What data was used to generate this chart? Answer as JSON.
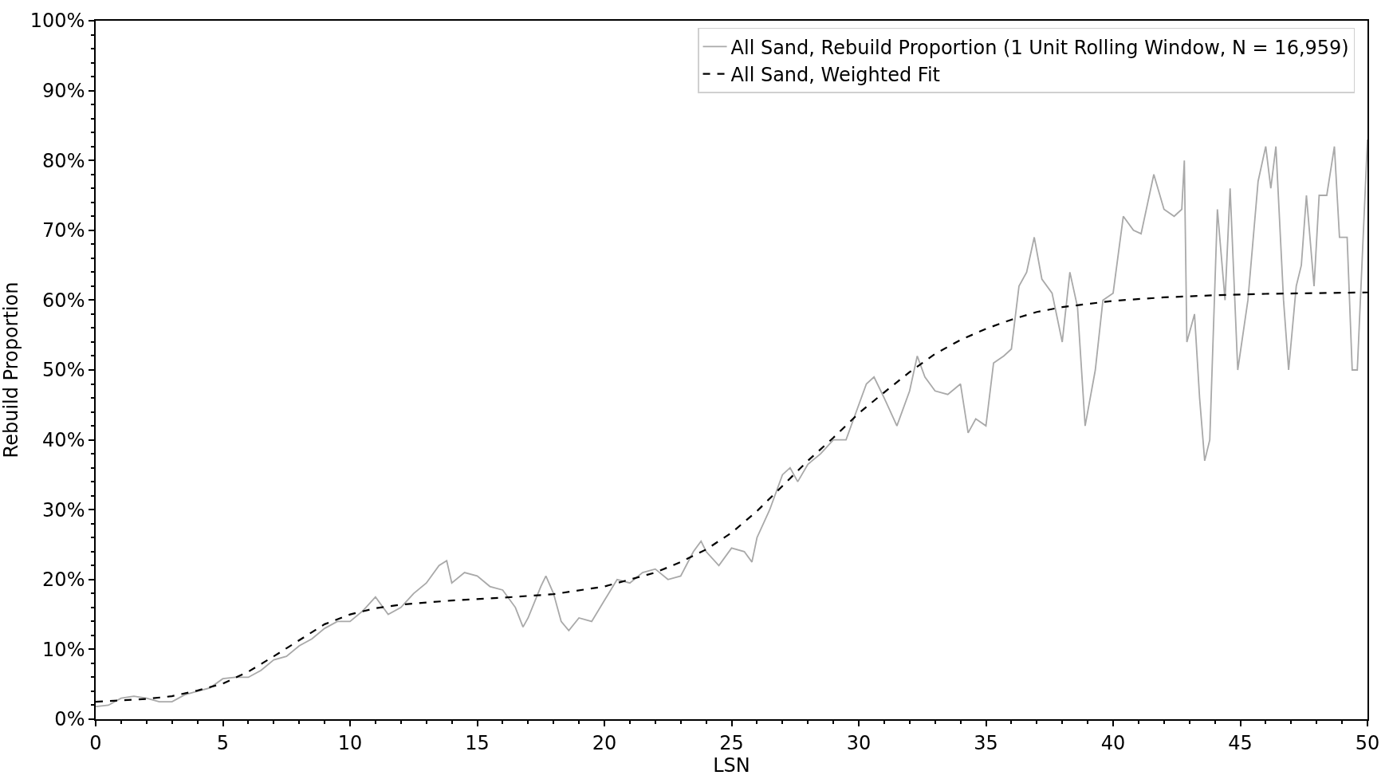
{
  "chart_data": {
    "type": "line",
    "xlabel": "LSN",
    "ylabel": "Rebuild Proportion",
    "xlim": [
      0,
      50
    ],
    "xticks": [
      0,
      5,
      10,
      15,
      20,
      25,
      30,
      35,
      40,
      45,
      50
    ],
    "ylim": [
      0,
      100
    ],
    "yticks": [
      {
        "value": 0,
        "label": "0%"
      },
      {
        "value": 10,
        "label": "10%"
      },
      {
        "value": 20,
        "label": "20%"
      },
      {
        "value": 30,
        "label": "30%"
      },
      {
        "value": 40,
        "label": "40%"
      },
      {
        "value": 50,
        "label": "50%"
      },
      {
        "value": 60,
        "label": "60%"
      },
      {
        "value": 70,
        "label": "70%"
      },
      {
        "value": 80,
        "label": "80%"
      },
      {
        "value": 90,
        "label": "90%"
      },
      {
        "value": 100,
        "label": "100%"
      }
    ],
    "legend": "top right",
    "series": [
      {
        "name": "All Sand, Rebuild Proportion (1 Unit Rolling Window, N = 16,959)",
        "color": "#a9a9a9",
        "line_style": "solid",
        "x": [
          0,
          0.5,
          1,
          1.5,
          2,
          2.5,
          3,
          3.5,
          4,
          4.5,
          5,
          5.5,
          6,
          6.5,
          7,
          7.5,
          8,
          8.5,
          9,
          9.5,
          10,
          10.5,
          11,
          11.5,
          12,
          12.5,
          13,
          13.5,
          13.8,
          14,
          14.5,
          15,
          15.5,
          16,
          16.5,
          16.8,
          17,
          17.5,
          17.7,
          18,
          18.3,
          18.6,
          19,
          19.5,
          20,
          20.5,
          21,
          21.5,
          22,
          22.5,
          23,
          23.5,
          23.8,
          24,
          24.5,
          25,
          25.5,
          25.8,
          26,
          26.5,
          27,
          27.3,
          27.6,
          28,
          28.5,
          29,
          29.5,
          30,
          30.3,
          30.6,
          31,
          31.5,
          32,
          32.3,
          32.6,
          33,
          33.5,
          34,
          34.3,
          34.6,
          35,
          35.3,
          35.7,
          36,
          36.3,
          36.6,
          36.9,
          37.2,
          37.6,
          38,
          38.3,
          38.6,
          38.9,
          39.3,
          39.6,
          40,
          40.4,
          40.8,
          41.1,
          41.6,
          42,
          42.4,
          42.7,
          42.8,
          42.9,
          43.2,
          43.4,
          43.6,
          43.8,
          44.1,
          44.4,
          44.6,
          44.9,
          45.3,
          45.7,
          46,
          46.2,
          46.4,
          46.7,
          46.9,
          47.2,
          47.4,
          47.6,
          47.9,
          48.1,
          48.4,
          48.7,
          48.9,
          49.2,
          49.4,
          49.6,
          50
        ],
        "values": [
          1.8,
          2,
          3,
          3.3,
          3,
          2.5,
          2.5,
          3.5,
          4,
          4.5,
          5.8,
          6,
          6,
          7,
          8.5,
          9,
          10.5,
          11.5,
          13,
          14,
          14,
          15.5,
          17.5,
          15,
          16,
          18,
          19.5,
          22,
          22.7,
          19.5,
          21,
          20.5,
          19,
          18.5,
          16,
          13.2,
          14.5,
          19,
          20.5,
          18,
          14,
          12.7,
          14.5,
          14,
          17,
          20,
          19.5,
          21,
          21.5,
          20,
          20.5,
          24,
          25.5,
          24,
          22,
          24.5,
          24,
          22.5,
          26,
          30,
          35,
          36,
          34,
          36.5,
          38,
          40,
          40,
          45,
          48,
          49,
          46,
          42,
          47,
          52,
          49,
          47,
          46.5,
          48,
          41,
          43,
          42,
          51,
          52,
          53,
          62,
          64,
          69,
          63,
          61,
          54,
          64,
          59,
          42,
          50,
          60,
          61,
          72,
          70,
          69.5,
          78,
          73,
          72,
          73,
          80,
          54,
          58,
          46,
          37,
          40,
          73,
          60,
          76,
          50,
          60,
          77,
          82,
          76,
          82,
          60,
          50,
          62,
          65,
          75,
          62,
          75,
          75,
          82,
          69,
          69,
          50,
          50,
          83
        ]
      },
      {
        "name": "All Sand, Weighted Fit",
        "color": "#000000",
        "line_style": "dashed",
        "x": [
          0,
          2,
          3,
          4,
          5,
          6,
          7,
          8,
          9,
          10,
          11,
          12,
          14,
          16,
          18,
          20,
          22,
          23,
          24,
          25,
          26,
          27,
          28,
          29,
          30,
          31,
          32,
          33,
          34,
          35,
          36,
          37,
          38,
          40,
          42,
          44,
          46,
          48,
          50
        ],
        "values": [
          2.5,
          2.9,
          3.3,
          4.1,
          5.1,
          6.8,
          9.0,
          11.3,
          13.6,
          15.0,
          15.9,
          16.4,
          17.0,
          17.4,
          17.9,
          19.0,
          21.0,
          22.5,
          24.3,
          26.7,
          29.8,
          33.4,
          37.0,
          40.3,
          43.8,
          46.8,
          49.7,
          52.3,
          54.3,
          55.9,
          57.2,
          58.3,
          59.0,
          59.9,
          60.4,
          60.7,
          60.9,
          61.0,
          61.1
        ]
      }
    ]
  }
}
